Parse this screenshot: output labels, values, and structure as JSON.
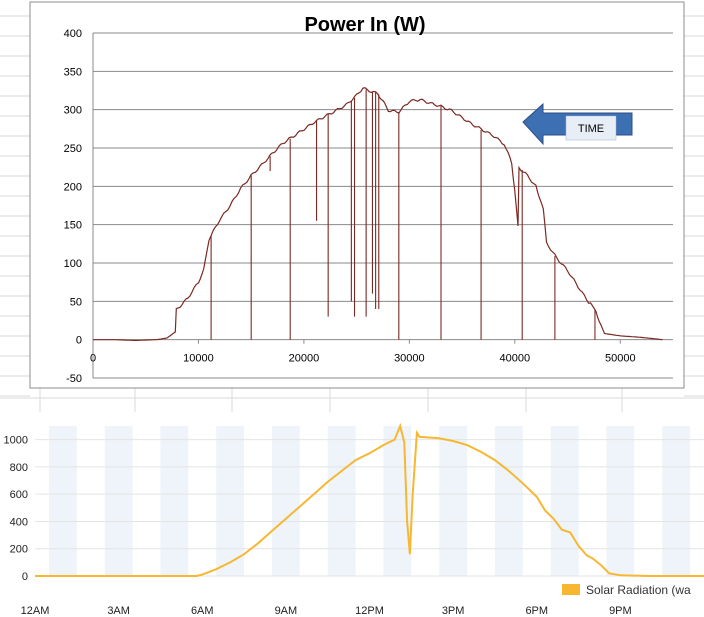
{
  "chart_data": [
    {
      "type": "line",
      "title": "Power In (W)",
      "xlabel": "",
      "ylabel": "",
      "xlim": [
        0,
        55000
      ],
      "ylim": [
        -50,
        400
      ],
      "x_ticks": [
        0,
        10000,
        20000,
        30000,
        40000,
        50000
      ],
      "y_ticks": [
        -50,
        0,
        50,
        100,
        150,
        200,
        250,
        300,
        350,
        400
      ],
      "grid": true,
      "line_color": "#7b2a23",
      "series": [
        {
          "name": "",
          "points": [
            [
              0,
              0
            ],
            [
              2000,
              0
            ],
            [
              4000,
              -1
            ],
            [
              6000,
              0
            ],
            [
              7000,
              2
            ],
            [
              7800,
              10
            ],
            [
              7900,
              40
            ],
            [
              9000,
              55
            ],
            [
              10000,
              75
            ],
            [
              10500,
              90
            ],
            [
              11000,
              130
            ],
            [
              12000,
              155
            ],
            [
              13000,
              175
            ],
            [
              14000,
              198
            ],
            [
              15000,
              215
            ],
            [
              16000,
              228
            ],
            [
              17000,
              242
            ],
            [
              18000,
              255
            ],
            [
              19000,
              265
            ],
            [
              20000,
              275
            ],
            [
              21000,
              285
            ],
            [
              22000,
              292
            ],
            [
              23000,
              298
            ],
            [
              24000,
              305
            ],
            [
              25000,
              318
            ],
            [
              25600,
              328
            ],
            [
              26200,
              325
            ],
            [
              27000,
              322
            ],
            [
              27500,
              312
            ],
            [
              28000,
              300
            ],
            [
              29000,
              297
            ],
            [
              30000,
              310
            ],
            [
              31000,
              312
            ],
            [
              32000,
              308
            ],
            [
              33000,
              305
            ],
            [
              34000,
              300
            ],
            [
              35000,
              290
            ],
            [
              36000,
              280
            ],
            [
              37000,
              272
            ],
            [
              38000,
              265
            ],
            [
              39000,
              255
            ],
            [
              39700,
              232
            ],
            [
              40000,
              195
            ],
            [
              40300,
              148
            ],
            [
              40400,
              225
            ],
            [
              41000,
              218
            ],
            [
              42000,
              200
            ],
            [
              42700,
              170
            ],
            [
              43000,
              125
            ],
            [
              44000,
              105
            ],
            [
              45000,
              90
            ],
            [
              46000,
              70
            ],
            [
              47000,
              50
            ],
            [
              47700,
              38
            ],
            [
              48000,
              25
            ],
            [
              48500,
              8
            ],
            [
              50000,
              5
            ],
            [
              52000,
              3
            ],
            [
              54000,
              0
            ]
          ]
        }
      ],
      "dropouts": [
        {
          "x": 11200,
          "y": 0
        },
        {
          "x": 15000,
          "y": 0
        },
        {
          "x": 16800,
          "y": 220
        },
        {
          "x": 18700,
          "y": 0
        },
        {
          "x": 21200,
          "y": 155
        },
        {
          "x": 22300,
          "y": 30
        },
        {
          "x": 24500,
          "y": 50
        },
        {
          "x": 24800,
          "y": 30
        },
        {
          "x": 25900,
          "y": 30
        },
        {
          "x": 26500,
          "y": 60
        },
        {
          "x": 26800,
          "y": 40
        },
        {
          "x": 27100,
          "y": 40
        },
        {
          "x": 29000,
          "y": 0
        },
        {
          "x": 33000,
          "y": 0
        },
        {
          "x": 36800,
          "y": 0
        },
        {
          "x": 40700,
          "y": 0
        },
        {
          "x": 43800,
          "y": 0
        },
        {
          "x": 47600,
          "y": 0
        }
      ],
      "annotation": {
        "text": "TIME",
        "shape": "left-arrow"
      }
    },
    {
      "type": "area",
      "title": "",
      "xlabel": "",
      "ylabel": "",
      "categories": [
        "12AM",
        "3AM",
        "6AM",
        "9AM",
        "12PM",
        "3PM",
        "6PM",
        "9PM"
      ],
      "xlim": [
        0,
        24
      ],
      "ylim": [
        0,
        1100
      ],
      "y_ticks": [
        0,
        200,
        400,
        600,
        800,
        1000
      ],
      "line_color": "#f7b731",
      "band_color": "#eef4fa",
      "legend": {
        "label": "Solar Radiation (wa",
        "position": "bottom-right"
      },
      "series": [
        {
          "name": "Solar Radiation (wa",
          "points": [
            [
              0,
              0
            ],
            [
              5.8,
              0
            ],
            [
              6.0,
              10
            ],
            [
              6.5,
              50
            ],
            [
              7.0,
              100
            ],
            [
              7.5,
              160
            ],
            [
              8.0,
              240
            ],
            [
              8.5,
              330
            ],
            [
              9.0,
              420
            ],
            [
              9.5,
              510
            ],
            [
              10.0,
              600
            ],
            [
              10.5,
              690
            ],
            [
              11.0,
              770
            ],
            [
              11.5,
              850
            ],
            [
              12.0,
              900
            ],
            [
              12.5,
              960
            ],
            [
              12.9,
              1000
            ],
            [
              13.0,
              1050
            ],
            [
              13.1,
              1100
            ],
            [
              13.25,
              980
            ],
            [
              13.35,
              400
            ],
            [
              13.45,
              160
            ],
            [
              13.55,
              600
            ],
            [
              13.7,
              1050
            ],
            [
              13.8,
              1020
            ],
            [
              14.5,
              1010
            ],
            [
              15.0,
              990
            ],
            [
              15.5,
              960
            ],
            [
              16.0,
              910
            ],
            [
              16.5,
              850
            ],
            [
              17.0,
              770
            ],
            [
              17.5,
              680
            ],
            [
              18.0,
              580
            ],
            [
              18.3,
              480
            ],
            [
              18.6,
              420
            ],
            [
              18.9,
              340
            ],
            [
              19.2,
              320
            ],
            [
              19.5,
              220
            ],
            [
              19.8,
              150
            ],
            [
              20.0,
              130
            ],
            [
              20.3,
              80
            ],
            [
              20.6,
              20
            ],
            [
              21.0,
              5
            ],
            [
              22.0,
              0
            ],
            [
              24.0,
              0
            ]
          ]
        }
      ]
    }
  ]
}
